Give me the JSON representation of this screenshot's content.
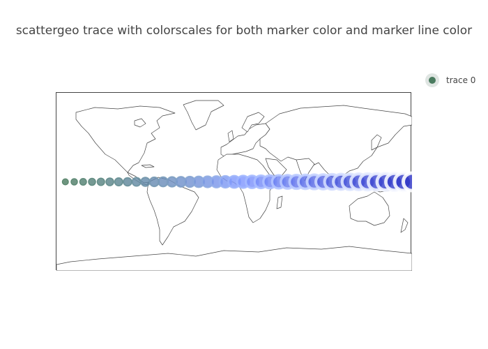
{
  "title": "scattergeo trace with colorscales for both marker color and marker line color",
  "legend": {
    "items": [
      {
        "name": "trace 0",
        "marker_color": "#4a7b5f",
        "halo_color": "#dfe5e2"
      }
    ]
  },
  "geo": {
    "projection": "equirectangular",
    "frame_color": "#444444",
    "coastline_color": "#444444",
    "land_color": "#ffffff"
  },
  "chart_data": {
    "type": "scatter",
    "trace": "scattergeo",
    "series": [
      {
        "name": "trace 0",
        "lat": [
          0,
          0,
          0,
          0,
          0,
          0,
          0,
          0,
          0,
          0,
          0,
          0,
          0,
          0,
          0,
          0,
          0,
          0,
          0,
          0,
          0,
          0,
          0,
          0,
          0,
          0,
          0,
          0,
          0,
          0,
          0,
          0,
          0,
          0,
          0,
          0,
          0,
          0,
          0,
          0
        ],
        "lon": [
          -171,
          -162,
          -153,
          -144,
          -135,
          -126,
          -117,
          -108,
          -99,
          -90,
          -81,
          -72,
          -63,
          -54,
          -45,
          -36,
          -27,
          -18,
          -9,
          0,
          9,
          18,
          27,
          36,
          45,
          54,
          63,
          72,
          81,
          90,
          99,
          108,
          117,
          126,
          135,
          144,
          153,
          162,
          171,
          180
        ],
        "size": [
          1,
          2,
          3,
          4,
          5,
          6,
          7,
          8,
          9,
          10,
          11,
          12,
          13,
          14,
          15,
          16,
          17,
          18,
          19,
          20,
          21,
          22,
          23,
          24,
          25,
          26,
          27,
          28,
          29,
          30,
          31,
          32,
          33,
          34,
          35,
          36,
          37,
          38,
          39,
          40
        ],
        "marker_color_scale": [
          "#4a7b5f",
          "#7f98ff",
          "#2d33c5"
        ],
        "marker_line_color_scale": [
          "#4a7b5f",
          "#9db4ff",
          "#ffffff"
        ],
        "opacity": 0.8
      }
    ]
  }
}
